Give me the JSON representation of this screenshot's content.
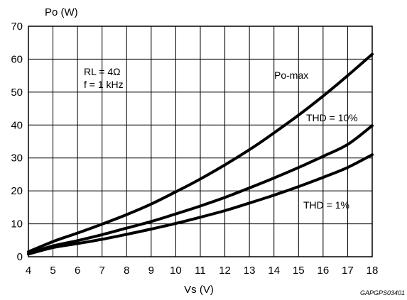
{
  "chart_data": {
    "type": "line",
    "xlabel": "Vs (V)",
    "ylabel": "Po (W)",
    "xlim": [
      4,
      18
    ],
    "ylim": [
      0,
      70
    ],
    "x_ticks": [
      4,
      5,
      6,
      7,
      8,
      9,
      10,
      11,
      12,
      13,
      14,
      15,
      16,
      17,
      18
    ],
    "y_ticks": [
      0,
      10,
      20,
      30,
      40,
      50,
      60,
      70
    ],
    "grid": true,
    "conditions": [
      "RL = 4Ω",
      "f = 1 kHz"
    ],
    "figure_code": "GAPGPS03401",
    "series": [
      {
        "name": "Po-max",
        "x": [
          4,
          5,
          6,
          7,
          8,
          9,
          10,
          11,
          12,
          13,
          14,
          15,
          16,
          17,
          18
        ],
        "y": [
          1.5,
          4.6,
          7.2,
          9.9,
          12.8,
          16.0,
          19.7,
          23.6,
          27.9,
          32.5,
          37.6,
          43.0,
          48.8,
          55.0,
          61.5
        ]
      },
      {
        "name": "THD = 10%",
        "x": [
          4,
          5,
          6,
          7,
          8,
          9,
          10,
          11,
          12,
          13,
          14,
          15,
          16,
          17,
          18
        ],
        "y": [
          1.0,
          3.3,
          4.9,
          6.7,
          8.7,
          10.7,
          13.0,
          15.4,
          18.0,
          20.9,
          23.9,
          27.1,
          30.5,
          34.1,
          39.8
        ]
      },
      {
        "name": "THD = 1%",
        "x": [
          4,
          5,
          6,
          7,
          8,
          9,
          10,
          11,
          12,
          13,
          14,
          15,
          16,
          17,
          18
        ],
        "y": [
          0.8,
          2.8,
          4.0,
          5.3,
          6.8,
          8.4,
          10.1,
          12.0,
          14.0,
          16.3,
          18.7,
          21.3,
          24.1,
          27.1,
          31.0
        ]
      }
    ]
  }
}
